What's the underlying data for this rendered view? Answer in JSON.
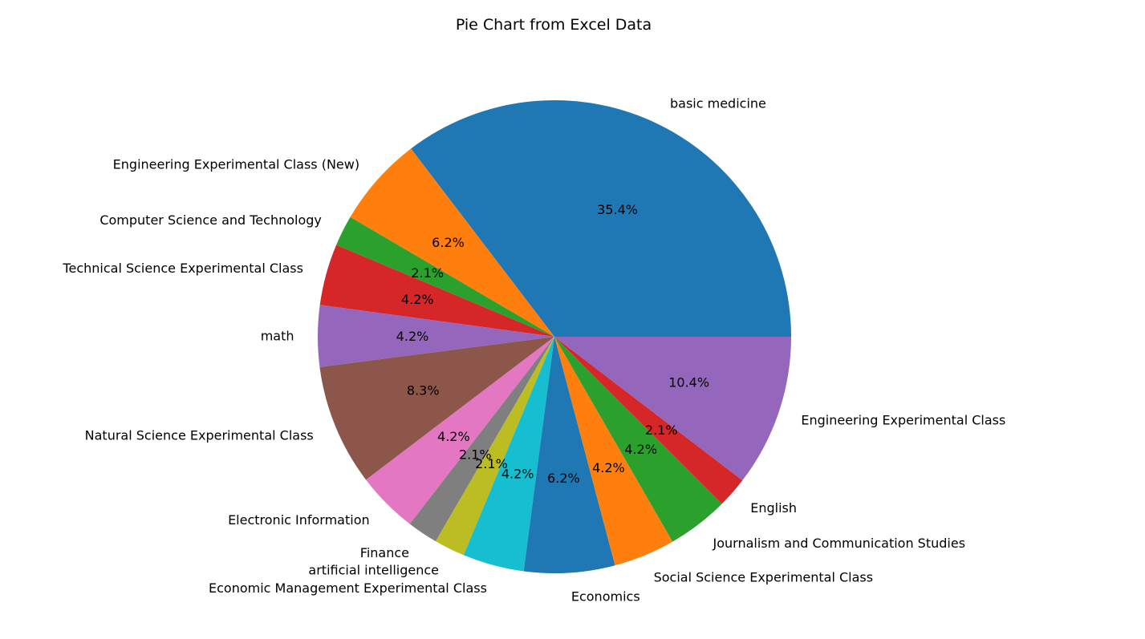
{
  "chart_data": {
    "type": "pie",
    "title": "Pie Chart from Excel Data",
    "start_angle_deg": 0,
    "direction": "counterclockwise",
    "slices": [
      {
        "label": "basic medicine",
        "value": 35.4,
        "pct_label": "35.4%",
        "color": "#1f77b4"
      },
      {
        "label": "Engineering Experimental Class (New)",
        "value": 6.2,
        "pct_label": "6.2%",
        "color": "#ff7f0e"
      },
      {
        "label": "Computer Science and Technology",
        "value": 2.1,
        "pct_label": "2.1%",
        "color": "#2ca02c"
      },
      {
        "label": "Technical Science Experimental Class",
        "value": 4.2,
        "pct_label": "4.2%",
        "color": "#d62728"
      },
      {
        "label": "math",
        "value": 4.2,
        "pct_label": "4.2%",
        "color": "#9467bd"
      },
      {
        "label": "Natural Science Experimental Class",
        "value": 8.3,
        "pct_label": "8.3%",
        "color": "#8c564b"
      },
      {
        "label": "Electronic Information",
        "value": 4.2,
        "pct_label": "4.2%",
        "color": "#e377c2"
      },
      {
        "label": "Finance",
        "value": 2.1,
        "pct_label": "2.1%",
        "color": "#7f7f7f"
      },
      {
        "label": "artificial intelligence",
        "value": 2.1,
        "pct_label": "2.1%",
        "color": "#bcbd22"
      },
      {
        "label": "Economic Management Experimental Class",
        "value": 4.2,
        "pct_label": "4.2%",
        "color": "#17becf"
      },
      {
        "label": "Economics",
        "value": 6.2,
        "pct_label": "6.2%",
        "color": "#1f77b4"
      },
      {
        "label": "Social Science Experimental Class",
        "value": 4.2,
        "pct_label": "4.2%",
        "color": "#ff7f0e"
      },
      {
        "label": "Journalism and Communication Studies",
        "value": 4.2,
        "pct_label": "4.2%",
        "color": "#2ca02c"
      },
      {
        "label": "English",
        "value": 2.1,
        "pct_label": "2.1%",
        "color": "#d62728"
      },
      {
        "label": "Engineering Experimental Class",
        "value": 10.4,
        "pct_label": "10.4%",
        "color": "#9467bd"
      }
    ]
  }
}
